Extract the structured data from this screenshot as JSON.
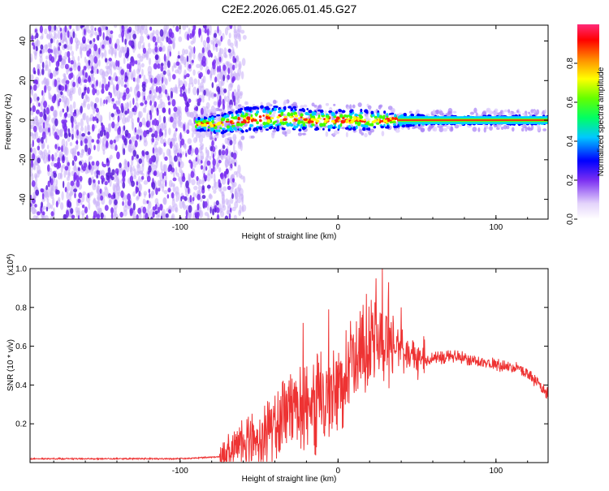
{
  "figure_title": "C2E2.2026.065.01.45.G27",
  "colors": {
    "snr_line": "#ee3333",
    "axis": "#000000",
    "scatter_purple": "#7b2ff2",
    "scatter_light": "#c9aef7"
  },
  "chart_data": [
    {
      "type": "heatmap",
      "title": "C2E2.2026.065.01.45.G27",
      "xlabel": "Height of straight line (km)",
      "ylabel": "Frequency (Hz)",
      "xlim": [
        -195,
        133
      ],
      "ylim": [
        -50,
        48
      ],
      "x_ticks": [
        -100,
        0,
        100
      ],
      "x_tick_labels": [
        "-100",
        "0",
        "100"
      ],
      "y_ticks": [
        -40,
        -20,
        0,
        20,
        40
      ],
      "y_tick_labels": [
        "-40",
        "-20",
        "0",
        "20",
        "40"
      ],
      "noise_region_x": [
        -195,
        -65
      ],
      "signal_track": {
        "x": [
          -90,
          -75,
          -60,
          -45,
          -30,
          -15,
          0,
          15,
          30,
          45,
          60,
          80,
          100,
          120,
          133
        ],
        "center_hz": [
          -2,
          -2,
          0,
          1,
          1,
          0,
          0,
          0,
          0,
          0,
          0,
          0,
          0,
          0,
          0
        ],
        "halfwidth_hz": [
          3,
          5,
          6,
          6,
          6,
          5,
          5,
          5,
          4,
          3,
          2,
          2,
          2,
          2,
          2
        ]
      },
      "colorbar": {
        "label": "Normalized spectral amplitude",
        "range": [
          0,
          1
        ],
        "ticks": [
          0,
          0.2,
          0.4,
          0.6,
          0.8
        ],
        "tick_labels": [
          "0.0",
          "0.2",
          "0.4",
          "0.6",
          "0.8"
        ]
      }
    },
    {
      "type": "line",
      "xlabel": "Height of straight line (km)",
      "ylabel": "SNR (10 * v/v)",
      "multiplier_label": "(x10",
      "multiplier_exponent": "4",
      "multiplier_close": ")",
      "xlim": [
        -195,
        133
      ],
      "ylim": [
        0,
        1.0
      ],
      "x_ticks": [
        -100,
        0,
        100
      ],
      "x_tick_labels": [
        "-100",
        "0",
        "100"
      ],
      "y_ticks": [
        0.2,
        0.4,
        0.6,
        0.8,
        1.0
      ],
      "y_tick_labels": [
        "0.2",
        "0.4",
        "0.6",
        "0.8",
        "1.0"
      ],
      "series": [
        {
          "name": "SNR",
          "x": [
            -195,
            -150,
            -100,
            -75,
            -65,
            -55,
            -45,
            -35,
            -25,
            -15,
            -5,
            5,
            15,
            25,
            35,
            45,
            55,
            65,
            75,
            85,
            95,
            105,
            115,
            125,
            133
          ],
          "y": [
            0.02,
            0.02,
            0.02,
            0.03,
            0.06,
            0.1,
            0.15,
            0.22,
            0.26,
            0.29,
            0.34,
            0.46,
            0.56,
            0.62,
            0.61,
            0.56,
            0.53,
            0.54,
            0.55,
            0.53,
            0.51,
            0.5,
            0.48,
            0.42,
            0.35
          ],
          "peaks": {
            "x": [
              -42,
              -22,
              -13,
              -6,
              8,
              18,
              24,
              28,
              32,
              40
            ],
            "y": [
              0.27,
              0.72,
              0.55,
              0.79,
              0.73,
              0.87,
              0.95,
              1.0,
              0.93,
              0.8
            ]
          }
        }
      ]
    }
  ]
}
